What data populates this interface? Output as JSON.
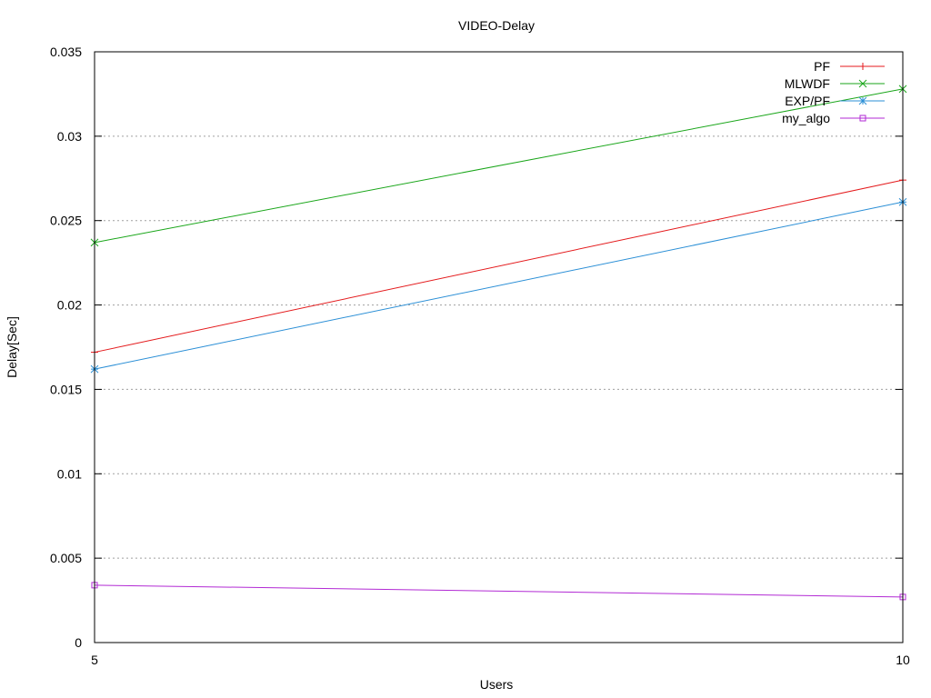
{
  "chart_data": {
    "type": "line",
    "title": "VIDEO-Delay",
    "xlabel": "Users",
    "ylabel": "Delay[Sec]",
    "x": [
      5,
      10
    ],
    "xlim": [
      5,
      10
    ],
    "ylim": [
      0,
      0.035
    ],
    "xticks": [
      "5",
      "10"
    ],
    "yticks": [
      "0",
      "0.005",
      "0.01",
      "0.015",
      "0.02",
      "0.025",
      "0.03",
      "0.035"
    ],
    "grid": "horizontal dotted",
    "legend_position": "top-right",
    "series": [
      {
        "name": "PF",
        "values": [
          0.0172,
          0.0274
        ],
        "color": "#e41a1c",
        "marker": "plus"
      },
      {
        "name": "MLWDF",
        "values": [
          0.0237,
          0.0328
        ],
        "color": "#1aa61a",
        "marker": "cross"
      },
      {
        "name": "EXP/PF",
        "values": [
          0.0162,
          0.0261
        ],
        "color": "#2b8fd6",
        "marker": "star"
      },
      {
        "name": "my_algo",
        "values": [
          0.0034,
          0.0027
        ],
        "color": "#b22ad4",
        "marker": "square"
      }
    ]
  }
}
